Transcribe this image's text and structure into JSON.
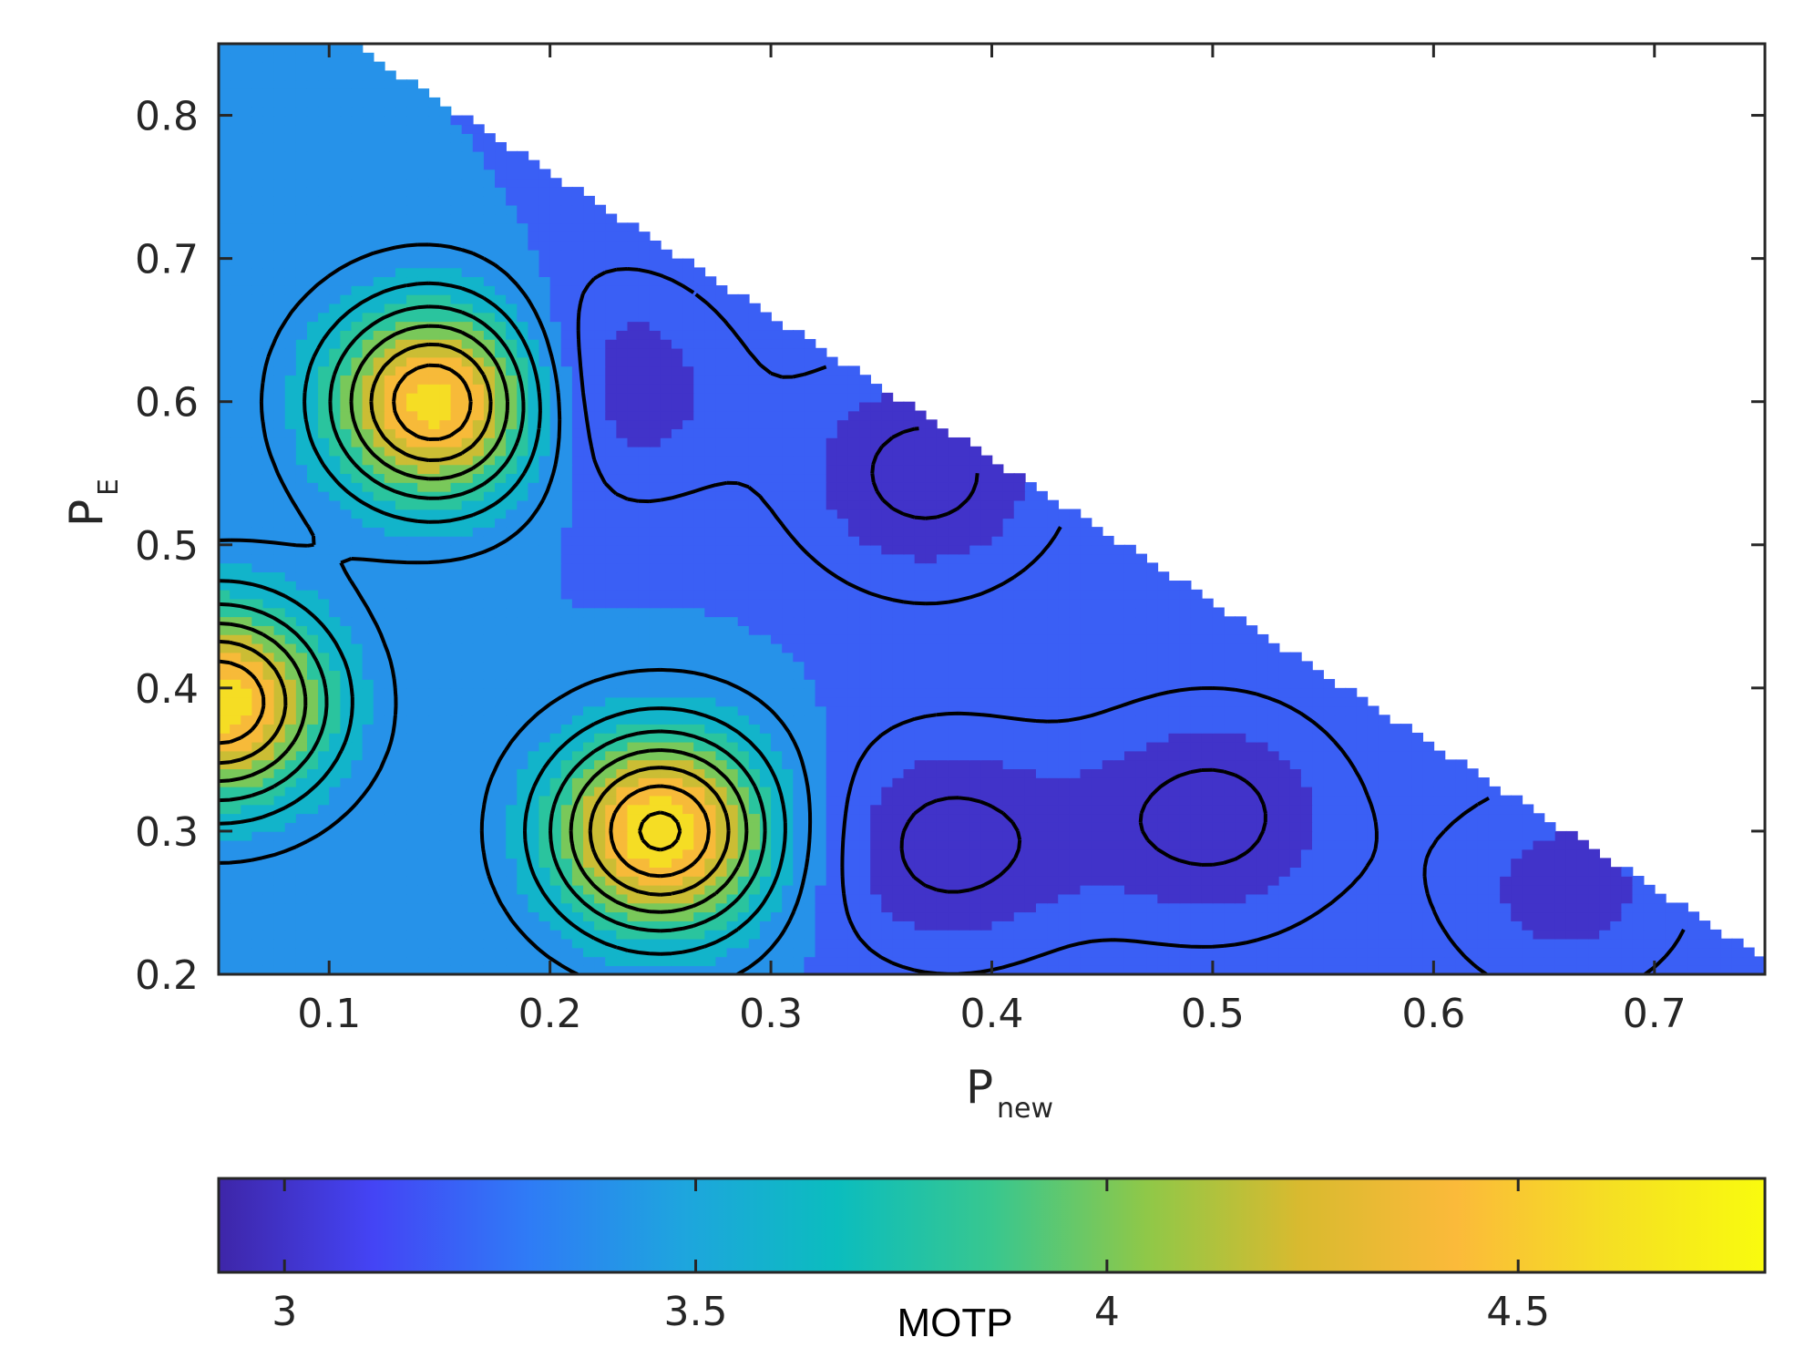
{
  "chart_data": {
    "type": "contourf",
    "title": "",
    "xlabel": {
      "main": "P",
      "sub": "new"
    },
    "ylabel": {
      "main": "P",
      "sub": "E"
    },
    "xlim": [
      0.05,
      0.75
    ],
    "ylim": [
      0.2,
      0.85
    ],
    "xticks": [
      0.1,
      0.2,
      0.3,
      0.4,
      0.5,
      0.6,
      0.7
    ],
    "yticks": [
      0.2,
      0.3,
      0.4,
      0.5,
      0.6,
      0.7,
      0.8
    ],
    "xtick_labels": [
      "0.1",
      "0.2",
      "0.3",
      "0.4",
      "0.5",
      "0.6",
      "0.7"
    ],
    "ytick_labels": [
      "0.2",
      "0.3",
      "0.4",
      "0.5",
      "0.6",
      "0.7",
      "0.8"
    ],
    "domain_constraint": "P_new + P_E <= 0.95",
    "background_level": 3.3,
    "contour_step": 0.2,
    "peaks": [
      {
        "x": 0.15,
        "y": 0.6,
        "value": 4.65
      },
      {
        "x": 0.05,
        "y": 0.39,
        "value": 4.6
      },
      {
        "x": 0.25,
        "y": 0.3,
        "value": 4.65
      }
    ],
    "troughs": [
      {
        "x": 0.22,
        "y": 0.61,
        "value": 2.95
      },
      {
        "x": 0.38,
        "y": 0.29,
        "value": 2.95
      },
      {
        "x": 0.5,
        "y": 0.31,
        "value": 2.95
      },
      {
        "x": 0.37,
        "y": 0.55,
        "value": 2.95
      },
      {
        "x": 0.66,
        "y": 0.26,
        "value": 3.05
      }
    ],
    "colorbar": {
      "label": "MOTP",
      "range": [
        2.92,
        4.8
      ],
      "ticks": [
        3,
        3.5,
        4,
        4.5
      ],
      "tick_labels": [
        "3",
        "3.5",
        "4",
        "4.5"
      ],
      "colormap": [
        "#3e26a8",
        "#4444f5",
        "#2f7bf6",
        "#1ea5de",
        "#0bbdbe",
        "#38c78f",
        "#8fc848",
        "#d9ba2f",
        "#fbba3a",
        "#f5df23",
        "#f9fb0e"
      ]
    }
  }
}
